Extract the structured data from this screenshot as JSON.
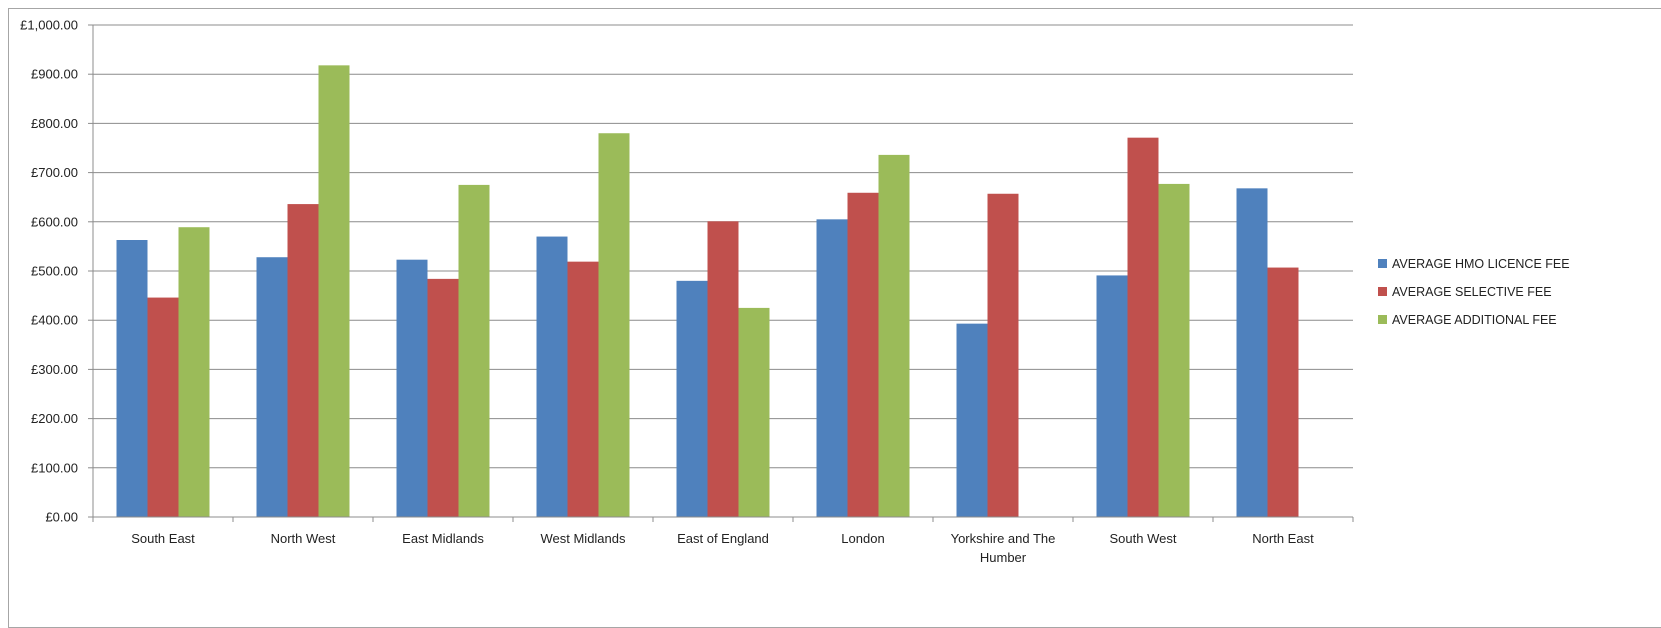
{
  "chart_data": {
    "type": "bar",
    "title": "",
    "xlabel": "",
    "ylabel": "",
    "ylim": [
      0,
      1000
    ],
    "y_ticks": [
      "£0.00",
      "£100.00",
      "£200.00",
      "£300.00",
      "£400.00",
      "£500.00",
      "£600.00",
      "£700.00",
      "£800.00",
      "£900.00",
      "£1,000.00"
    ],
    "y_tick_values": [
      0,
      100,
      200,
      300,
      400,
      500,
      600,
      700,
      800,
      900,
      1000
    ],
    "grid": true,
    "legend_position": "right",
    "categories": [
      [
        "South East"
      ],
      [
        "North West"
      ],
      [
        "East Midlands"
      ],
      [
        "West Midlands"
      ],
      [
        "East of England"
      ],
      [
        "London"
      ],
      [
        "Yorkshire and The",
        "Humber"
      ],
      [
        "South West"
      ],
      [
        "North East"
      ]
    ],
    "series": [
      {
        "name": "AVERAGE HMO LICENCE FEE",
        "color": "#4f81bd",
        "values": [
          563,
          528,
          523,
          570,
          480,
          605,
          393,
          491,
          668
        ]
      },
      {
        "name": "AVERAGE SELECTIVE FEE",
        "color": "#c0504d",
        "values": [
          446,
          636,
          484,
          519,
          601,
          659,
          657,
          771,
          507
        ]
      },
      {
        "name": "AVERAGE ADDITIONAL FEE",
        "color": "#9bbb59",
        "values": [
          589,
          918,
          675,
          780,
          425,
          736,
          null,
          677,
          null
        ]
      }
    ]
  }
}
